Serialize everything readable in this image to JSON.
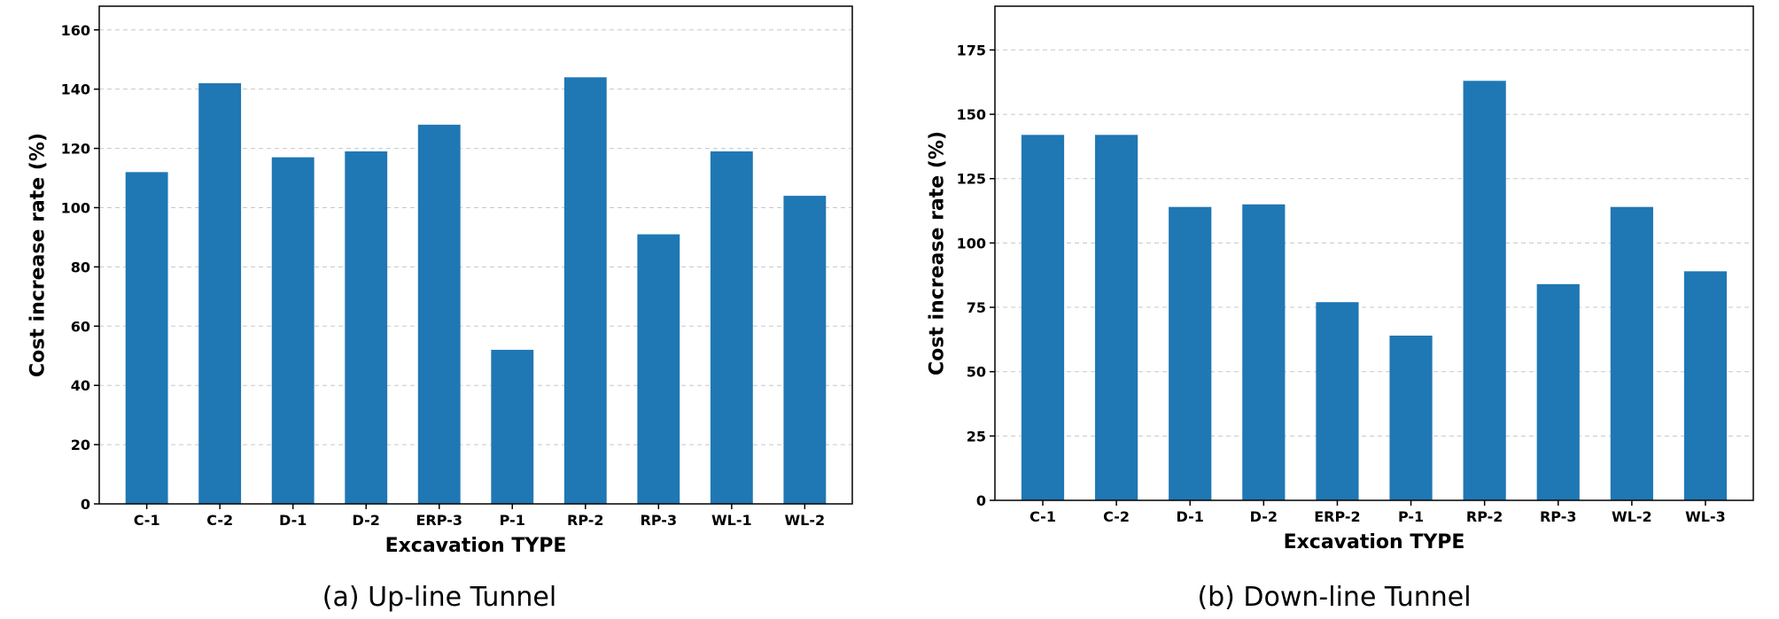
{
  "chart_data": [
    {
      "type": "bar",
      "caption": "(a) Up-line Tunnel",
      "xlabel": "Excavation TYPE",
      "ylabel": "Cost increase rate (%)",
      "categories": [
        "C-1",
        "C-2",
        "D-1",
        "D-2",
        "ERP-3",
        "P-1",
        "RP-2",
        "RP-3",
        "WL-1",
        "WL-2"
      ],
      "values": [
        112,
        142,
        117,
        119,
        128,
        52,
        144,
        91,
        119,
        104
      ],
      "ylim": [
        0,
        168
      ],
      "yticks": [
        0,
        20,
        40,
        60,
        80,
        100,
        120,
        140,
        160
      ],
      "grid": "y-dashed",
      "color": "#1f77b4"
    },
    {
      "type": "bar",
      "caption": "(b) Down-line Tunnel",
      "xlabel": "Excavation TYPE",
      "ylabel": "Cost increase rate (%)",
      "categories": [
        "C-1",
        "C-2",
        "D-1",
        "D-2",
        "ERP-2",
        "P-1",
        "RP-2",
        "RP-3",
        "WL-2",
        "WL-3"
      ],
      "values": [
        142,
        142,
        114,
        115,
        77,
        64,
        163,
        84,
        114,
        89
      ],
      "ylim": [
        0,
        192
      ],
      "yticks": [
        0,
        25,
        50,
        75,
        100,
        125,
        150,
        175
      ],
      "grid": "y-dashed",
      "color": "#1f77b4"
    }
  ]
}
